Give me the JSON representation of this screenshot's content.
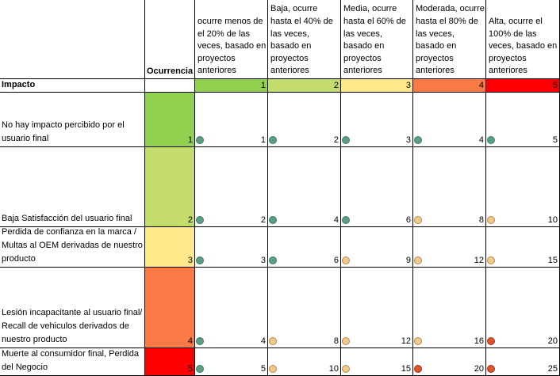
{
  "header": {
    "ocurrencia": "Ocurrencia",
    "impacto": "Impacto",
    "columns": [
      {
        "label": "ocurre menos de el 20% de las veces, basado en proyectos anteriores",
        "level": "1",
        "color": "#92d050"
      },
      {
        "label": "Baja, ocurre hasta el 40% de las veces, basado en proyectos anteriores",
        "level": "2",
        "color": "#c4dc6c"
      },
      {
        "label": "Media, ocurre hasta el 60% de las veces, basado en proyectos anteriores",
        "level": "3",
        "color": "#ffe98a"
      },
      {
        "label": "Moderada, ocurre hasta el 80% de las veces, basado en proyectos anteriores",
        "level": "4",
        "color": "#fa7a46"
      },
      {
        "label": "Alta, ocurre el 100% de las veces, basado en proyectos anteriores",
        "level": "5",
        "color": "#ff0000"
      }
    ]
  },
  "rows": [
    {
      "impact": "No hay impacto percibido por el usuario final",
      "level": "1",
      "color": "#92d050",
      "cells": [
        {
          "value": "1",
          "status": "green"
        },
        {
          "value": "2",
          "status": "green"
        },
        {
          "value": "3",
          "status": "green"
        },
        {
          "value": "4",
          "status": "green"
        },
        {
          "value": "5",
          "status": "green"
        }
      ]
    },
    {
      "impact": "Baja Satisfacción del usuario final",
      "level": "2",
      "color": "#c4dc6c",
      "cells": [
        {
          "value": "2",
          "status": "green"
        },
        {
          "value": "4",
          "status": "green"
        },
        {
          "value": "6",
          "status": "green"
        },
        {
          "value": "8",
          "status": "yellow"
        },
        {
          "value": "10",
          "status": "yellow"
        }
      ]
    },
    {
      "impact": "Perdida de confianza en la marca / Multas al OEM derivadas de nuestro producto",
      "level": "3",
      "color": "#ffe98a",
      "cells": [
        {
          "value": "3",
          "status": "green"
        },
        {
          "value": "6",
          "status": "green"
        },
        {
          "value": "9",
          "status": "yellow"
        },
        {
          "value": "12",
          "status": "yellow"
        },
        {
          "value": "15",
          "status": "yellow"
        }
      ]
    },
    {
      "impact": "Lesión incapacitante al usuario final/ Recall de vehiculos derivados de nuestro producto",
      "level": "4",
      "color": "#fa7a46",
      "cells": [
        {
          "value": "4",
          "status": "green"
        },
        {
          "value": "8",
          "status": "yellow"
        },
        {
          "value": "12",
          "status": "yellow"
        },
        {
          "value": "16",
          "status": "yellow"
        },
        {
          "value": "20",
          "status": "red"
        }
      ]
    },
    {
      "impact": "Muerte al consumidor final, Perdida del Negocio",
      "level": "5",
      "color": "#ff0000",
      "cells": [
        {
          "value": "5",
          "status": "green"
        },
        {
          "value": "10",
          "status": "yellow"
        },
        {
          "value": "15",
          "status": "yellow"
        },
        {
          "value": "20",
          "status": "red"
        },
        {
          "value": "25",
          "status": "red"
        }
      ]
    }
  ],
  "status_colors": {
    "green": "#5a9e84",
    "yellow": "#f3c98a",
    "red": "#e0532f"
  }
}
